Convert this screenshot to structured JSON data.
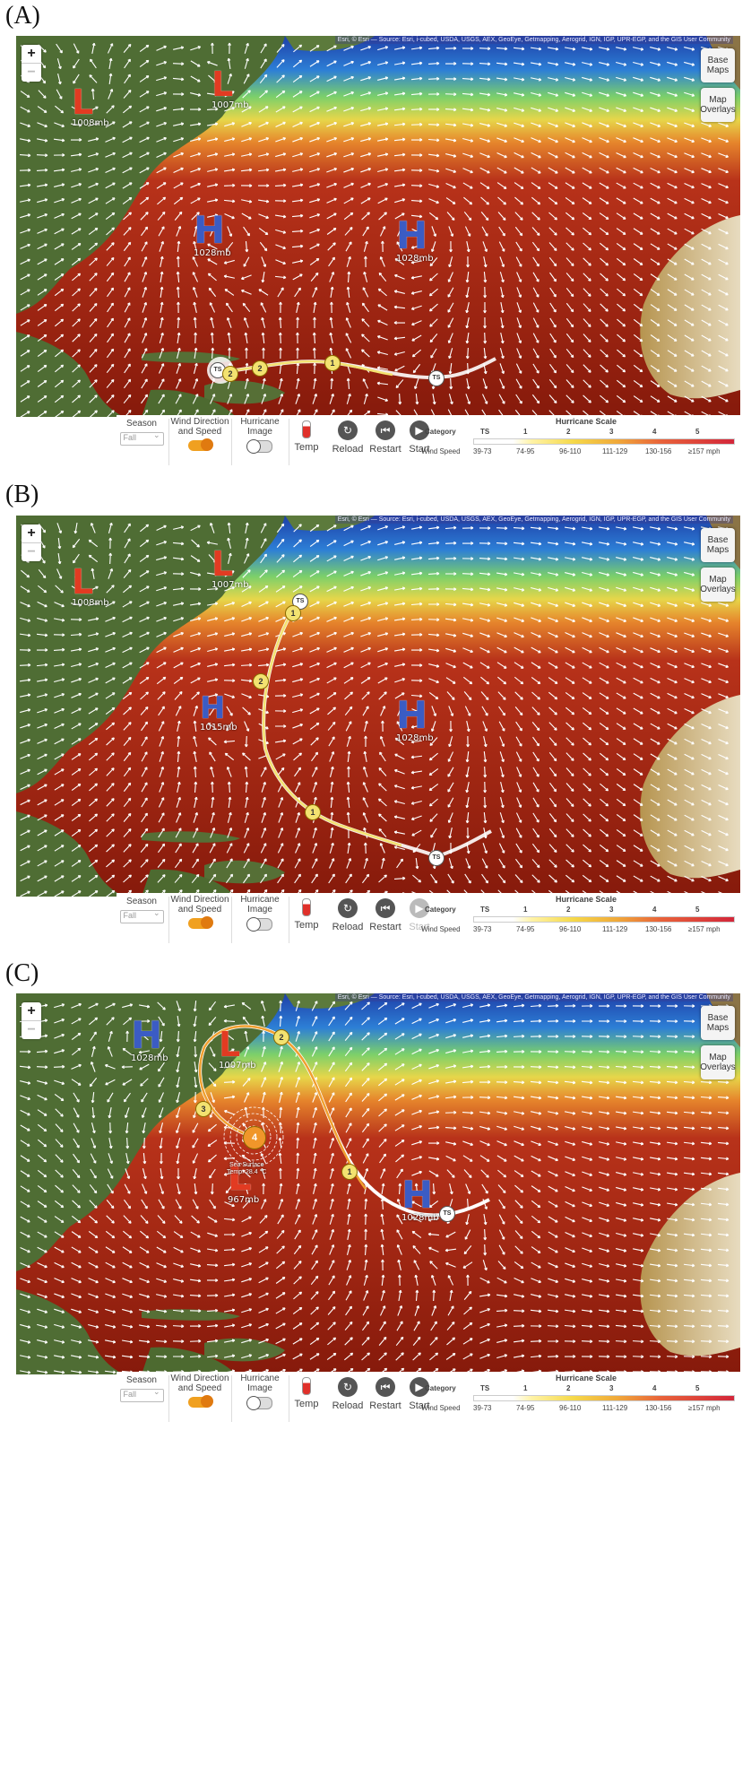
{
  "labels": {
    "a": "(A)",
    "b": "(B)",
    "c": "(C)"
  },
  "map_controls": {
    "zoom_in": "+",
    "zoom_out": "−",
    "base_maps": "Base Maps",
    "map_overlays": "Map Overlays",
    "attribution": "Esri, © Esri — Source: Esri, i-cubed, USDA, USGS, AEX, GeoEye, Getmapping, Aerogrid, IGN, IGP, UPR-EGP, and the GIS User Community"
  },
  "toolbar": {
    "season_label": "Season",
    "season_value": "Fall",
    "wind_label": "Wind Direction and Speed",
    "hurricane_image_label": "Hurricane Image",
    "temp_label": "Temp",
    "reload_label": "Reload",
    "restart_label": "Restart",
    "start_label": "Start",
    "category_label": "Category",
    "wind_speed_label": "Wind Speed",
    "scale_title": "Hurricane Scale",
    "categories": [
      "TS",
      "1",
      "2",
      "3",
      "4",
      "5"
    ],
    "speeds": [
      "39-73",
      "74-95",
      "96-110",
      "111-129",
      "130-156",
      "≥157 mph"
    ]
  },
  "panel_a": {
    "pressures": [
      {
        "kind": "L",
        "mb": "1008mb"
      },
      {
        "kind": "L",
        "mb": "1007mb"
      },
      {
        "kind": "H",
        "mb": "1028mb"
      },
      {
        "kind": "H",
        "mb": "1028mb"
      }
    ],
    "track_markers": [
      "TS",
      "2",
      "2",
      "1",
      "TS"
    ]
  },
  "panel_b": {
    "pressures": [
      {
        "kind": "L",
        "mb": "1008mb"
      },
      {
        "kind": "L",
        "mb": "1007mb"
      },
      {
        "kind": "H",
        "mb": "1015mb"
      },
      {
        "kind": "H",
        "mb": "1028mb"
      }
    ],
    "track_markers": [
      "TS",
      "1",
      "2",
      "1",
      "TS"
    ]
  },
  "panel_c": {
    "pressures": [
      {
        "kind": "H",
        "mb": "1028mb"
      },
      {
        "kind": "L",
        "mb": "1007mb"
      },
      {
        "kind": "L",
        "mb": "967mb"
      },
      {
        "kind": "H",
        "mb": "1028mb"
      }
    ],
    "track_markers": [
      "2",
      "3",
      "4",
      "1",
      "TS"
    ],
    "sst_label_1": "Sea Surface",
    "sst_label_2": "Temp. 28.4 °C"
  },
  "colors": {
    "low": "#e23b22",
    "high": "#3b5cc4",
    "ocean_warm": "#8a1e0c",
    "ocean_cool": "#2d6bd6",
    "land": "#4f6d34",
    "track_yellow": "#f3e270",
    "toggle_on": "#f0a020"
  }
}
